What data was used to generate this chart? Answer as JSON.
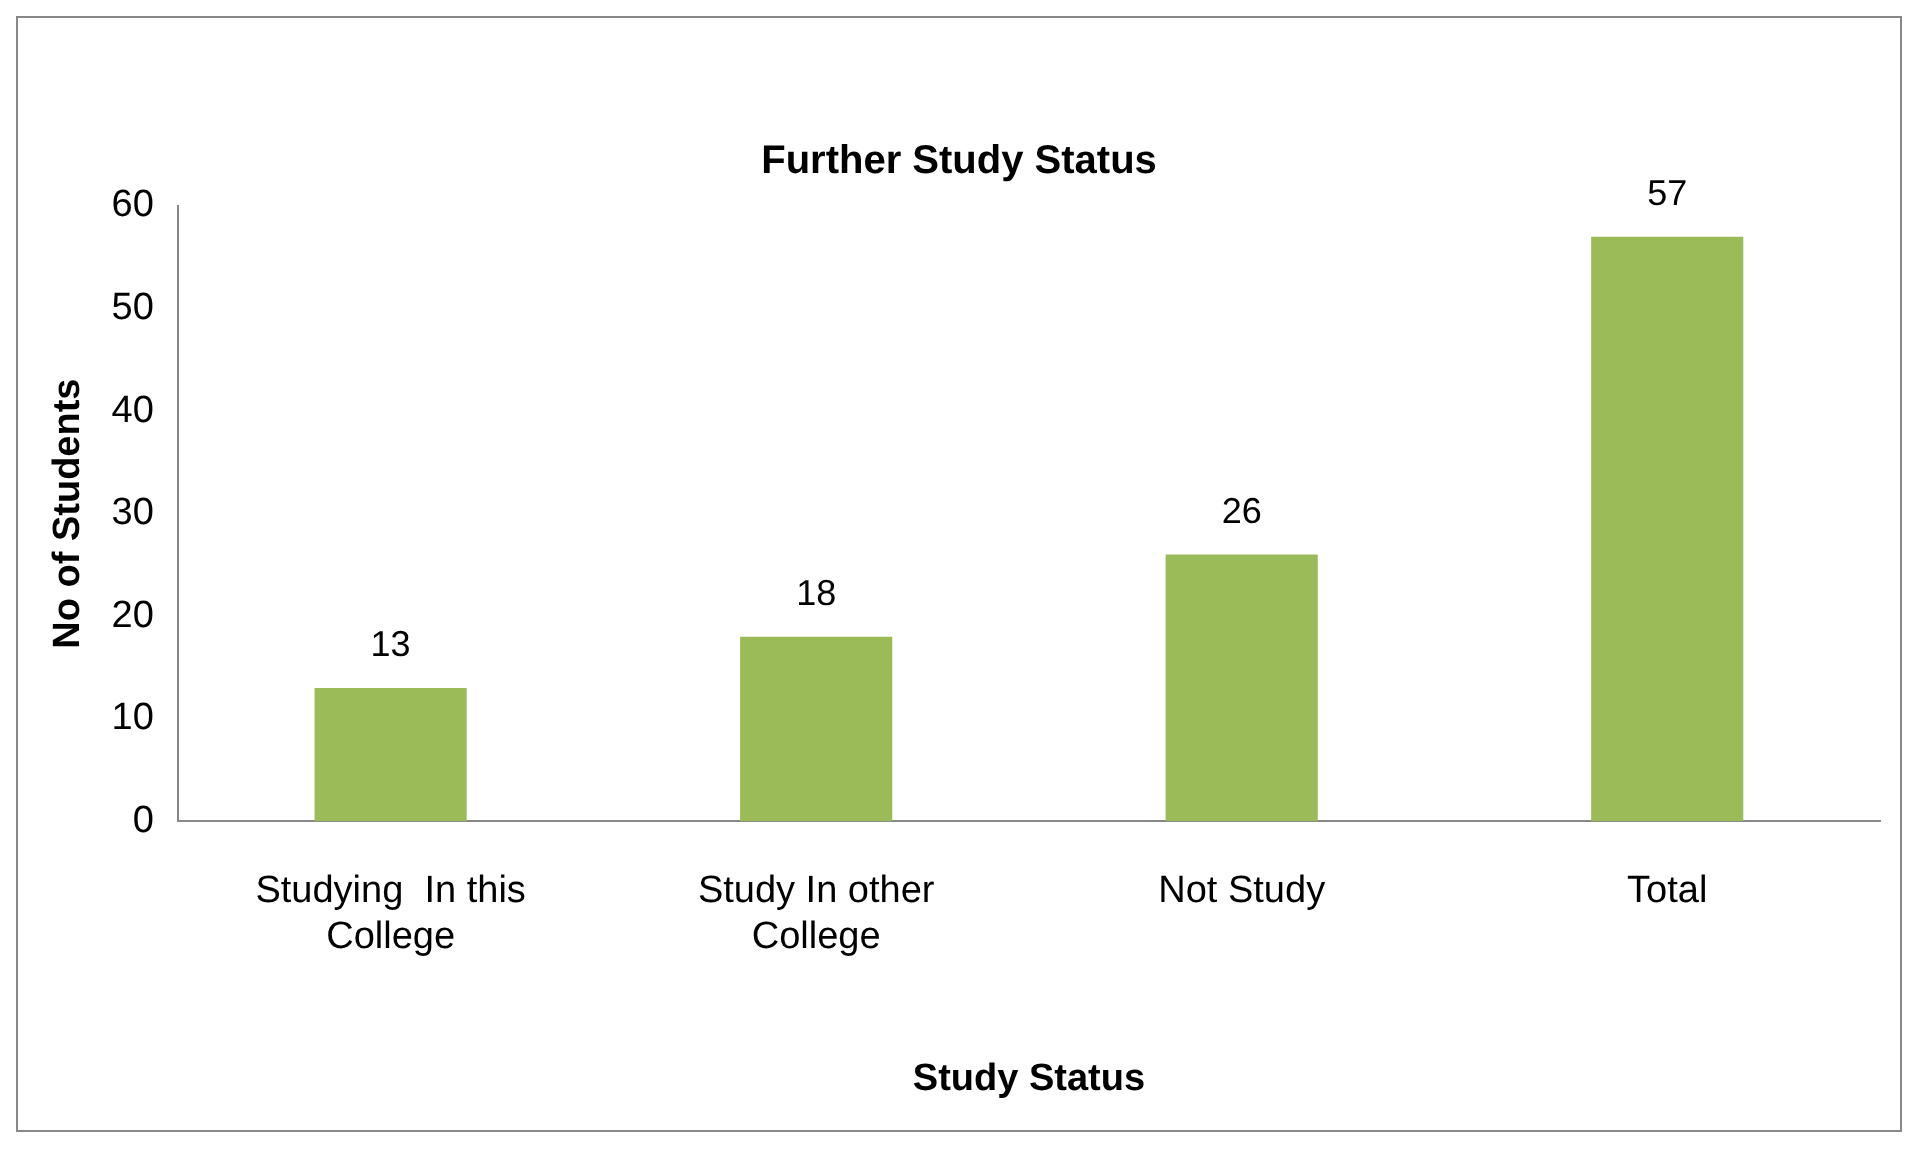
{
  "chart_data": {
    "type": "bar",
    "title": "Further Study Status",
    "xlabel": "Study Status",
    "ylabel": "No of Students",
    "categories": [
      "Studying  In this College",
      "Study In other College",
      "Not Study",
      "Total"
    ],
    "values": [
      13,
      18,
      26,
      57
    ],
    "color": "#9bbb59",
    "data_labels": true,
    "ylim": [
      0,
      60
    ],
    "yticks": [
      0,
      10,
      20,
      30,
      40,
      50,
      60
    ],
    "grid": false,
    "legend": false
  }
}
